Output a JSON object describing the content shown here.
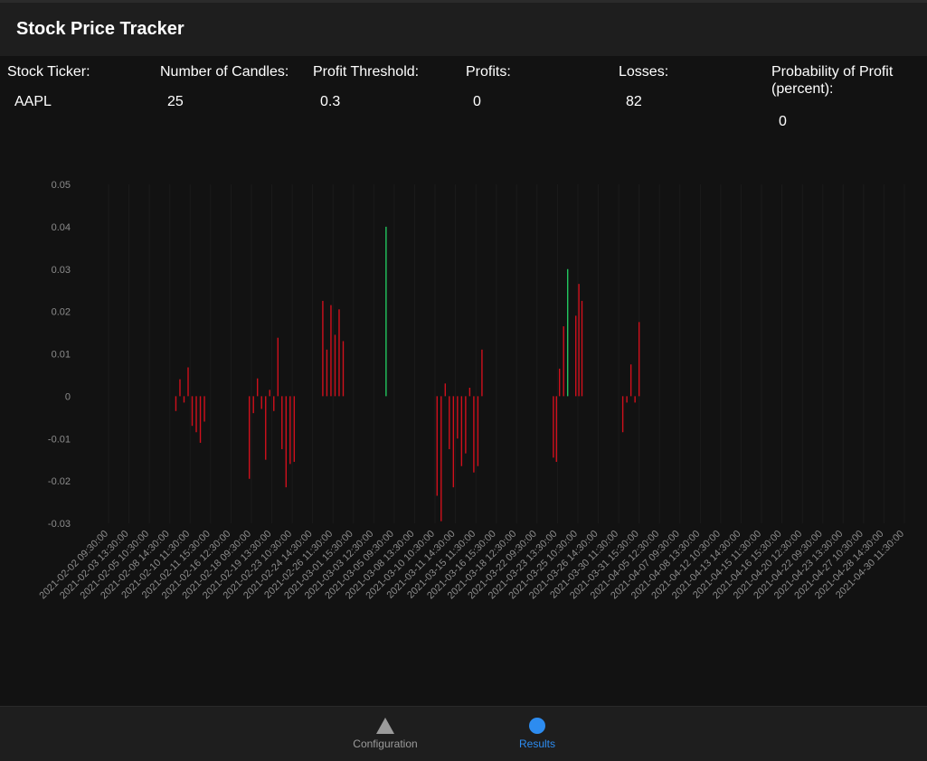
{
  "app": {
    "title": "Stock Price Tracker"
  },
  "stats": [
    {
      "label": "Stock Ticker:",
      "value": "AAPL"
    },
    {
      "label": "Number of Candles:",
      "value": "25"
    },
    {
      "label": "Profit Threshold:",
      "value": "0.3"
    },
    {
      "label": "Profits:",
      "value": "0"
    },
    {
      "label": "Losses:",
      "value": "82"
    },
    {
      "label": "Probability of Profit (percent):",
      "value": "0"
    }
  ],
  "tabs": [
    {
      "label": "Configuration",
      "icon": "triangle-icon",
      "active": false
    },
    {
      "label": "Results",
      "icon": "circle-icon",
      "active": true
    }
  ],
  "colors": {
    "loss": "#d0101c",
    "profit": "#22c55e",
    "active_tab": "#2d8cf0",
    "inactive_tab": "#9b9b9b"
  },
  "chart_data": {
    "type": "bar",
    "ylim": [
      -0.03,
      0.05
    ],
    "y_ticks": [
      "0.05",
      "0.04",
      "0.03",
      "0.02",
      "0.01",
      "0",
      "-0.01",
      "-0.02",
      "-0.03"
    ],
    "x_ticks": [
      "2021-02-02 09:30:00",
      "2021-02-03 13:30:00",
      "2021-02-05 10:30:00",
      "2021-02-08 14:30:00",
      "2021-02-10 11:30:00",
      "2021-02-11 15:30:00",
      "2021-02-16 12:30:00",
      "2021-02-18 09:30:00",
      "2021-02-19 13:30:00",
      "2021-02-23 10:30:00",
      "2021-02-24 14:30:00",
      "2021-02-26 11:30:00",
      "2021-03-01 15:30:00",
      "2021-03-03 12:30:00",
      "2021-03-05 09:30:00",
      "2021-03-08 13:30:00",
      "2021-03-10 10:30:00",
      "2021-03-11 14:30:00",
      "2021-03-15 11:30:00",
      "2021-03-16 15:30:00",
      "2021-03-18 12:30:00",
      "2021-03-22 09:30:00",
      "2021-03-23 13:30:00",
      "2021-03-25 10:30:00",
      "2021-03-26 14:30:00",
      "2021-03-30 11:30:00",
      "2021-03-31 15:30:00",
      "2021-04-05 12:30:00",
      "2021-04-07 09:30:00",
      "2021-04-08 13:30:00",
      "2021-04-12 10:30:00",
      "2021-04-13 14:30:00",
      "2021-04-15 11:30:00",
      "2021-04-16 15:30:00",
      "2021-04-20 12:30:00",
      "2021-04-22 09:30:00",
      "2021-04-23 13:30:00",
      "2021-04-27 10:30:00",
      "2021-04-28 14:30:00",
      "2021-04-30 11:30:00"
    ],
    "series": [
      {
        "color": "loss",
        "bars": [
          [
            3.3,
            -0.0035
          ],
          [
            3.5,
            0.004
          ],
          [
            3.7,
            -0.0015
          ],
          [
            3.9,
            0.0068
          ],
          [
            4.1,
            -0.007
          ],
          [
            4.3,
            -0.0085
          ],
          [
            4.5,
            -0.011
          ],
          [
            4.7,
            -0.006
          ],
          [
            6.9,
            -0.0195
          ],
          [
            7.1,
            -0.004
          ],
          [
            7.3,
            0.0042
          ],
          [
            7.5,
            -0.003
          ],
          [
            7.7,
            -0.015
          ],
          [
            7.9,
            0.0015
          ],
          [
            8.1,
            -0.0035
          ],
          [
            8.3,
            0.0138
          ],
          [
            8.5,
            -0.0125
          ],
          [
            8.7,
            -0.0215
          ],
          [
            8.9,
            -0.016
          ],
          [
            9.1,
            -0.0155
          ],
          [
            10.5,
            0.0225
          ],
          [
            10.7,
            0.011
          ],
          [
            10.9,
            0.0215
          ],
          [
            11.1,
            0.0145
          ],
          [
            11.3,
            0.0205
          ],
          [
            11.5,
            0.013
          ],
          [
            16.1,
            -0.0235
          ],
          [
            16.3,
            -0.0295
          ],
          [
            16.5,
            0.003
          ],
          [
            16.7,
            -0.0125
          ],
          [
            16.9,
            -0.0215
          ],
          [
            17.1,
            -0.01
          ],
          [
            17.3,
            -0.0165
          ],
          [
            17.5,
            -0.0135
          ],
          [
            17.7,
            0.002
          ],
          [
            17.9,
            -0.018
          ],
          [
            18.1,
            -0.0165
          ],
          [
            18.3,
            0.011
          ],
          [
            21.8,
            -0.0145
          ],
          [
            21.95,
            -0.0155
          ],
          [
            22.1,
            0.0065
          ],
          [
            22.3,
            0.0165
          ],
          [
            22.9,
            0.019
          ],
          [
            23.05,
            0.0265
          ],
          [
            23.2,
            0.0225
          ],
          [
            25.2,
            -0.0085
          ],
          [
            25.4,
            -0.0015
          ],
          [
            25.6,
            0.0075
          ],
          [
            25.8,
            -0.0015
          ],
          [
            26.0,
            0.0175
          ]
        ]
      },
      {
        "color": "profit",
        "bars": [
          [
            13.6,
            0.04
          ],
          [
            22.5,
            0.03
          ]
        ]
      }
    ]
  }
}
